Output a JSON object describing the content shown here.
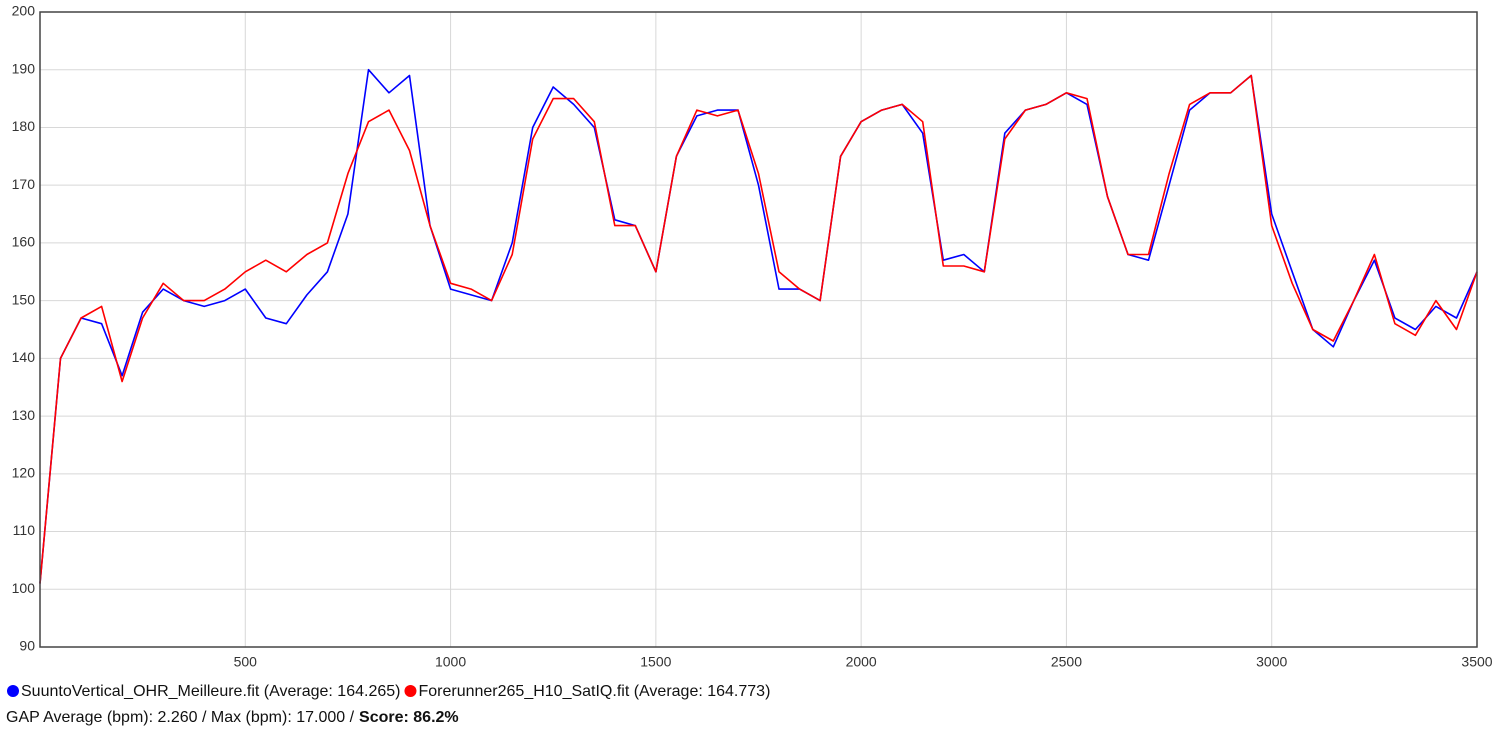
{
  "chart_data": {
    "type": "line",
    "x": [
      0,
      50,
      100,
      150,
      200,
      250,
      300,
      350,
      400,
      450,
      500,
      550,
      600,
      650,
      700,
      750,
      800,
      850,
      900,
      950,
      1000,
      1050,
      1100,
      1150,
      1200,
      1250,
      1300,
      1350,
      1400,
      1450,
      1500,
      1550,
      1600,
      1650,
      1700,
      1750,
      1800,
      1850,
      1900,
      1950,
      2000,
      2050,
      2100,
      2150,
      2200,
      2250,
      2300,
      2350,
      2400,
      2450,
      2500,
      2550,
      2600,
      2650,
      2700,
      2750,
      2800,
      2850,
      2900,
      2950,
      3000,
      3050,
      3100,
      3150,
      3200,
      3250,
      3300,
      3350,
      3400,
      3450,
      3500
    ],
    "series": [
      {
        "name": "SuuntoVertical_OHR_Meilleure.fit (Average: 164.265)",
        "color": "#0000ff",
        "values": [
          101,
          140,
          147,
          146,
          137,
          148,
          152,
          150,
          149,
          150,
          152,
          147,
          146,
          151,
          155,
          165,
          190,
          186,
          189,
          163,
          152,
          151,
          150,
          160,
          180,
          187,
          184,
          180,
          164,
          163,
          155,
          175,
          182,
          183,
          183,
          170,
          152,
          152,
          150,
          175,
          181,
          183,
          184,
          179,
          157,
          158,
          155,
          179,
          183,
          184,
          186,
          184,
          168,
          158,
          157,
          170,
          183,
          186,
          186,
          189,
          165,
          155,
          145,
          142,
          150,
          157,
          147,
          145,
          149,
          147,
          155
        ]
      },
      {
        "name": "Forerunner265_H10_SatIQ.fit (Average: 164.773)",
        "color": "#ff0000",
        "values": [
          101,
          140,
          147,
          149,
          136,
          147,
          153,
          150,
          150,
          152,
          155,
          157,
          155,
          158,
          160,
          172,
          181,
          183,
          176,
          163,
          153,
          152,
          150,
          158,
          178,
          185,
          185,
          181,
          163,
          163,
          155,
          175,
          183,
          182,
          183,
          172,
          155,
          152,
          150,
          175,
          181,
          183,
          184,
          181,
          156,
          156,
          155,
          178,
          183,
          184,
          186,
          185,
          168,
          158,
          158,
          172,
          184,
          186,
          186,
          189,
          163,
          153,
          145,
          143,
          150,
          158,
          146,
          144,
          150,
          145,
          155
        ]
      }
    ],
    "xlim": [
      0,
      3500
    ],
    "xticks": [
      500,
      1000,
      1500,
      2000,
      2500,
      3000,
      3500
    ],
    "ylim": [
      90,
      200
    ],
    "yticks": [
      90,
      100,
      110,
      120,
      130,
      140,
      150,
      160,
      170,
      180,
      190,
      200
    ],
    "grid": true,
    "stats_text": "GAP Average (bpm): 2.260 / Max (bpm): 17.000 /",
    "score_text": "Score: 86.2%"
  }
}
